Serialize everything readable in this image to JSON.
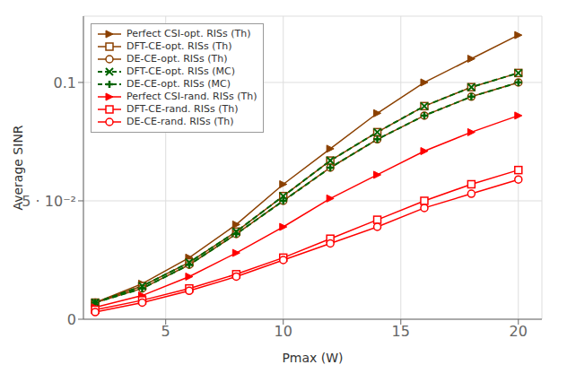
{
  "chart_data": {
    "type": "line",
    "x": [
      2,
      4,
      6,
      8,
      10,
      12,
      14,
      16,
      18,
      20
    ],
    "series": [
      {
        "name": "Perfect CSI-opt. RISs (Th)",
        "color": "#8B4000",
        "marker": "triangle-right",
        "line_style": "solid",
        "values": [
          0.007,
          0.015,
          0.026,
          0.04,
          0.057,
          0.072,
          0.087,
          0.1,
          0.11,
          0.12
        ]
      },
      {
        "name": "DFT-CE-opt. RISs (Th)",
        "color": "#8B4000",
        "marker": "square-open",
        "line_style": "solid",
        "values": [
          0.007,
          0.014,
          0.024,
          0.037,
          0.052,
          0.067,
          0.079,
          0.09,
          0.098,
          0.104
        ]
      },
      {
        "name": "DE-CE-opt. RISs (Th)",
        "color": "#8B4000",
        "marker": "circle-open",
        "line_style": "solid",
        "values": [
          0.007,
          0.013,
          0.023,
          0.036,
          0.05,
          0.064,
          0.076,
          0.086,
          0.094,
          0.1
        ]
      },
      {
        "name": "DFT-CE-opt. RISs (MC)",
        "color": "#006400",
        "marker": "x",
        "line_style": "dashed",
        "values": [
          0.007,
          0.014,
          0.024,
          0.037,
          0.052,
          0.067,
          0.079,
          0.09,
          0.098,
          0.104
        ]
      },
      {
        "name": "DE-CE-opt. RISs (MC)",
        "color": "#006400",
        "marker": "plus",
        "line_style": "dashed",
        "values": [
          0.007,
          0.013,
          0.023,
          0.036,
          0.05,
          0.064,
          0.076,
          0.086,
          0.094,
          0.1
        ]
      },
      {
        "name": "Perfect CSI-rand. RISs (Th)",
        "color": "#FF0000",
        "marker": "triangle-right",
        "line_style": "solid",
        "values": [
          0.005,
          0.01,
          0.018,
          0.028,
          0.039,
          0.051,
          0.061,
          0.071,
          0.079,
          0.086
        ]
      },
      {
        "name": "DFT-CE-rand. RISs (Th)",
        "color": "#FF0000",
        "marker": "square-open",
        "line_style": "solid",
        "values": [
          0.004,
          0.008,
          0.013,
          0.019,
          0.026,
          0.034,
          0.042,
          0.05,
          0.057,
          0.063
        ]
      },
      {
        "name": "DE-CE-rand. RISs (Th)",
        "color": "#FF0000",
        "marker": "circle-open",
        "line_style": "solid",
        "values": [
          0.003,
          0.007,
          0.012,
          0.018,
          0.025,
          0.032,
          0.039,
          0.047,
          0.053,
          0.059
        ]
      }
    ],
    "xlabel": "Pmax (W)",
    "ylabel": "Average SINR",
    "xlim": [
      1.5,
      21.0
    ],
    "ylim": [
      0,
      0.128
    ],
    "xticks": [
      5,
      10,
      15,
      20
    ],
    "yticks": [
      0,
      {
        "value": 0.05,
        "label": "5 · 10⁻²"
      },
      0.1
    ],
    "grid": true,
    "legend": "upper left"
  }
}
